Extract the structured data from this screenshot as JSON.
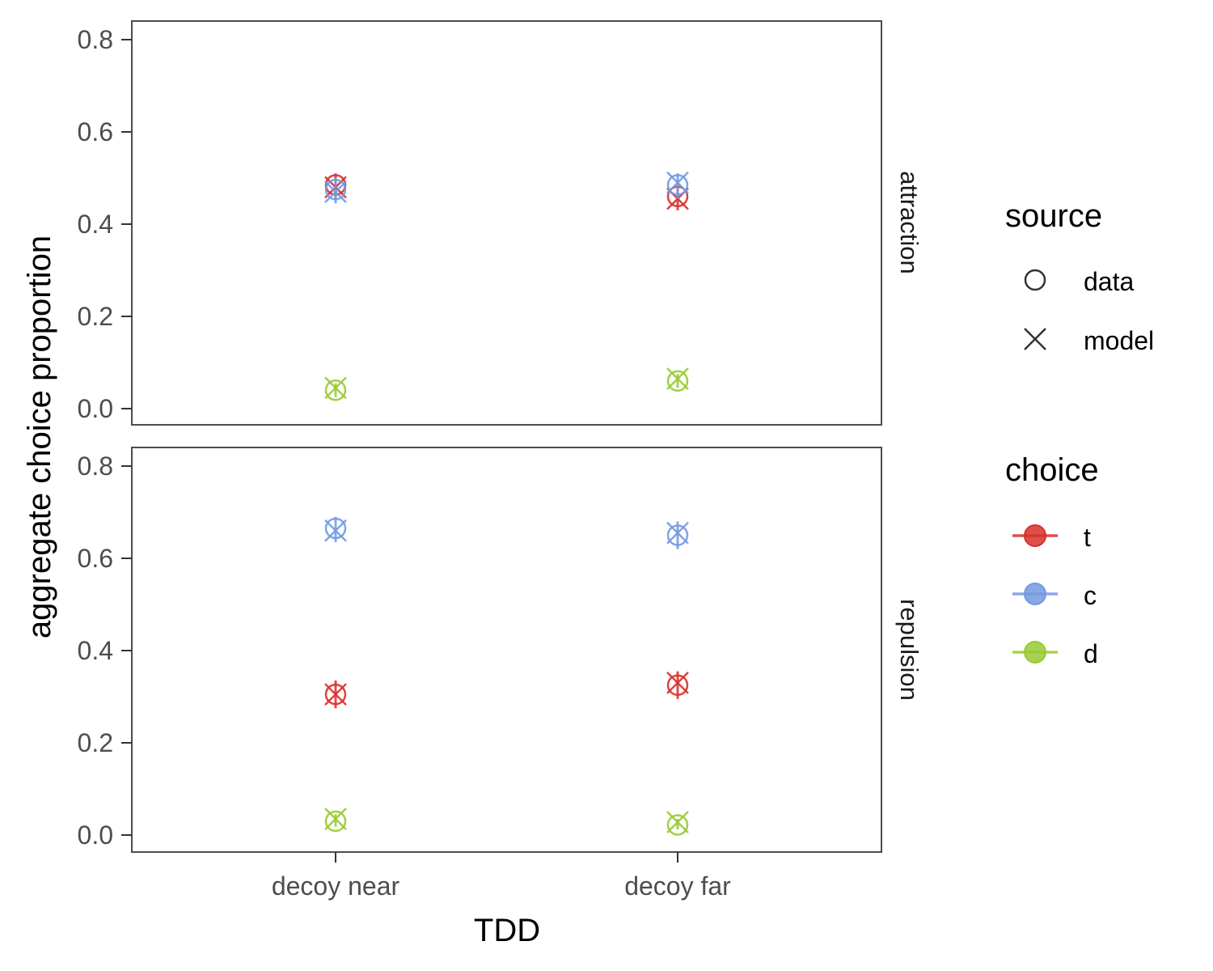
{
  "chart_data": {
    "type": "scatter",
    "xlabel": "TDD",
    "ylabel": "aggregate choice proportion",
    "categories": [
      "decoy near",
      "decoy far"
    ],
    "yticks": [
      "0.0",
      "0.2",
      "0.4",
      "0.6",
      "0.8"
    ],
    "ylim": [
      -0.035,
      0.835
    ],
    "grid": false,
    "legend_placement": "right",
    "legends": {
      "source": {
        "title": "source",
        "items": [
          {
            "label": "data",
            "shape": "circle"
          },
          {
            "label": "model",
            "shape": "cross"
          }
        ]
      },
      "choice": {
        "title": "choice",
        "items": [
          {
            "label": "t",
            "color": "#D7302B"
          },
          {
            "label": "c",
            "color": "#7399E0"
          },
          {
            "label": "d",
            "color": "#98CA32"
          }
        ]
      }
    },
    "panels": [
      {
        "label": "attraction",
        "series": [
          {
            "choice": "t",
            "data": [
              0.485,
              0.46
            ],
            "model": [
              0.48,
              0.455
            ],
            "error": [
              [
                0.455,
                0.51
              ],
              [
                0.43,
                0.485
              ]
            ]
          },
          {
            "choice": "c",
            "data": [
              0.475,
              0.485
            ],
            "model": [
              0.47,
              0.49
            ],
            "error": [
              [
                0.445,
                0.5
              ],
              [
                0.455,
                0.51
              ]
            ]
          },
          {
            "choice": "d",
            "data": [
              0.04,
              0.06
            ],
            "model": [
              0.045,
              0.065
            ],
            "error": [
              [
                0.025,
                0.055
              ],
              [
                0.045,
                0.075
              ]
            ]
          }
        ]
      },
      {
        "label": "repulsion",
        "series": [
          {
            "choice": "t",
            "data": [
              0.305,
              0.325
            ],
            "model": [
              0.305,
              0.33
            ],
            "error": [
              [
                0.275,
                0.335
              ],
              [
                0.295,
                0.355
              ]
            ]
          },
          {
            "choice": "c",
            "data": [
              0.665,
              0.65
            ],
            "model": [
              0.66,
              0.655
            ],
            "error": [
              [
                0.635,
                0.69
              ],
              [
                0.62,
                0.68
              ]
            ]
          },
          {
            "choice": "d",
            "data": [
              0.03,
              0.022
            ],
            "model": [
              0.035,
              0.028
            ],
            "error": [
              [
                0.018,
                0.045
              ],
              [
                0.012,
                0.035
              ]
            ]
          }
        ]
      }
    ]
  }
}
